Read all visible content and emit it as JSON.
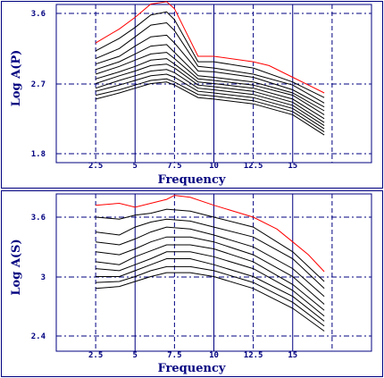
{
  "chart_data": [
    {
      "type": "line",
      "xlabel": "Frequency",
      "ylabel": "Log A(P)",
      "x_ticks": [
        "2.5",
        "5",
        "7.5",
        "10",
        "12.5",
        "15"
      ],
      "y_ticks": [
        "3.6",
        "2.7",
        "1.8"
      ],
      "xlim": [
        0,
        20
      ],
      "ylim": [
        1.8,
        3.6
      ],
      "grid": true,
      "series": [
        {
          "color": "#ff0000",
          "x": [
            2.5,
            4,
            5,
            6,
            7,
            7.5,
            9,
            10,
            12.5,
            13.5,
            15,
            16,
            17
          ],
          "y": [
            3.22,
            3.4,
            3.55,
            3.72,
            3.75,
            3.66,
            3.05,
            3.05,
            2.98,
            2.93,
            2.78,
            2.68,
            2.58
          ]
        },
        {
          "color": "#000000",
          "x": [
            2.5,
            4,
            5,
            6,
            7,
            7.5,
            9,
            10,
            12.5,
            15,
            17
          ],
          "y": [
            3.12,
            3.28,
            3.42,
            3.58,
            3.62,
            3.52,
            2.98,
            2.98,
            2.9,
            2.72,
            2.52
          ]
        },
        {
          "color": "#000000",
          "x": [
            2.5,
            4,
            5,
            6,
            7,
            7.5,
            9,
            10,
            12.5,
            15,
            17
          ],
          "y": [
            3.02,
            3.15,
            3.3,
            3.45,
            3.48,
            3.38,
            2.92,
            2.9,
            2.82,
            2.68,
            2.45
          ]
        },
        {
          "color": "#000000",
          "x": [
            2.5,
            4,
            5,
            6,
            7,
            7.5,
            9,
            10,
            12.5,
            15,
            17
          ],
          "y": [
            2.95,
            3.05,
            3.18,
            3.3,
            3.32,
            3.22,
            2.86,
            2.85,
            2.78,
            2.62,
            2.4
          ]
        },
        {
          "color": "#000000",
          "x": [
            2.5,
            4,
            5,
            6,
            7,
            7.5,
            9,
            10,
            12.5,
            15,
            17
          ],
          "y": [
            2.88,
            2.98,
            3.08,
            3.18,
            3.2,
            3.1,
            2.8,
            2.78,
            2.72,
            2.58,
            2.35
          ]
        },
        {
          "color": "#000000",
          "x": [
            2.5,
            4,
            5,
            6,
            7,
            7.5,
            9,
            10,
            12.5,
            15,
            17
          ],
          "y": [
            2.82,
            2.92,
            3.0,
            3.08,
            3.1,
            3.02,
            2.76,
            2.74,
            2.68,
            2.55,
            2.3
          ]
        },
        {
          "color": "#000000",
          "x": [
            2.5,
            4,
            5,
            6,
            7,
            7.5,
            9,
            10,
            12.5,
            15,
            17
          ],
          "y": [
            2.76,
            2.85,
            2.92,
            3.0,
            3.02,
            2.95,
            2.72,
            2.7,
            2.64,
            2.5,
            2.25
          ]
        },
        {
          "color": "#000000",
          "x": [
            2.5,
            4,
            5,
            6,
            7,
            7.5,
            9,
            10,
            12.5,
            15,
            17
          ],
          "y": [
            2.7,
            2.8,
            2.86,
            2.93,
            2.95,
            2.9,
            2.68,
            2.66,
            2.6,
            2.46,
            2.2
          ]
        },
        {
          "color": "#000000",
          "x": [
            2.5,
            4,
            5,
            6,
            7,
            7.5,
            9,
            10,
            12.5,
            15,
            17
          ],
          "y": [
            2.64,
            2.74,
            2.8,
            2.86,
            2.88,
            2.84,
            2.64,
            2.62,
            2.56,
            2.42,
            2.16
          ]
        },
        {
          "color": "#000000",
          "x": [
            2.5,
            4,
            5,
            6,
            7,
            7.5,
            9,
            10,
            12.5,
            15,
            17
          ],
          "y": [
            2.6,
            2.68,
            2.74,
            2.8,
            2.82,
            2.78,
            2.6,
            2.58,
            2.52,
            2.38,
            2.12
          ]
        },
        {
          "color": "#000000",
          "x": [
            2.5,
            4,
            5,
            6,
            7,
            7.5,
            9,
            10,
            12.5,
            15,
            17
          ],
          "y": [
            2.55,
            2.62,
            2.68,
            2.74,
            2.76,
            2.72,
            2.56,
            2.54,
            2.48,
            2.34,
            2.08
          ]
        },
        {
          "color": "#000000",
          "x": [
            2.5,
            4,
            5,
            6,
            7,
            7.5,
            9,
            10,
            12.5,
            15,
            17
          ],
          "y": [
            2.5,
            2.58,
            2.64,
            2.7,
            2.72,
            2.68,
            2.52,
            2.5,
            2.44,
            2.3,
            2.04
          ]
        }
      ]
    },
    {
      "type": "line",
      "xlabel": "Frequency",
      "ylabel": "Log A(S)",
      "x_ticks": [
        "2.5",
        "5",
        "7.5",
        "10",
        "12.5",
        "15"
      ],
      "y_ticks": [
        "3.6",
        "3",
        "2.4"
      ],
      "xlim": [
        0,
        20
      ],
      "ylim": [
        2.4,
        3.6
      ],
      "grid": true,
      "series": [
        {
          "color": "#ff0000",
          "x": [
            2.5,
            4,
            5,
            6,
            7,
            7.5,
            8.5,
            10,
            12.5,
            14,
            15,
            16,
            17
          ],
          "y": [
            3.72,
            3.74,
            3.7,
            3.74,
            3.78,
            3.82,
            3.8,
            3.72,
            3.6,
            3.48,
            3.35,
            3.22,
            3.05
          ]
        },
        {
          "color": "#000000",
          "x": [
            2.5,
            4,
            5,
            6,
            7,
            8.5,
            10,
            12.5,
            15,
            17
          ],
          "y": [
            3.6,
            3.58,
            3.62,
            3.64,
            3.68,
            3.66,
            3.6,
            3.5,
            3.25,
            2.95
          ]
        },
        {
          "color": "#000000",
          "x": [
            2.5,
            4,
            5,
            6,
            7,
            8.5,
            10,
            12.5,
            15,
            17
          ],
          "y": [
            3.45,
            3.42,
            3.5,
            3.55,
            3.58,
            3.56,
            3.5,
            3.4,
            3.18,
            2.88
          ]
        },
        {
          "color": "#000000",
          "x": [
            2.5,
            4,
            5,
            6,
            7,
            8.5,
            10,
            12.5,
            15,
            17
          ],
          "y": [
            3.35,
            3.32,
            3.38,
            3.45,
            3.5,
            3.48,
            3.42,
            3.3,
            3.08,
            2.8
          ]
        },
        {
          "color": "#000000",
          "x": [
            2.5,
            4,
            5,
            6,
            7,
            8.5,
            10,
            12.5,
            15,
            17
          ],
          "y": [
            3.25,
            3.22,
            3.28,
            3.35,
            3.4,
            3.4,
            3.35,
            3.22,
            3.0,
            2.72
          ]
        },
        {
          "color": "#000000",
          "x": [
            2.5,
            4,
            5,
            6,
            7,
            8.5,
            10,
            12.5,
            15,
            17
          ],
          "y": [
            3.15,
            3.12,
            3.2,
            3.26,
            3.32,
            3.32,
            3.28,
            3.15,
            2.92,
            2.66
          ]
        },
        {
          "color": "#000000",
          "x": [
            2.5,
            4,
            5,
            6,
            7,
            8.5,
            10,
            12.5,
            15,
            17
          ],
          "y": [
            3.08,
            3.06,
            3.12,
            3.18,
            3.25,
            3.25,
            3.2,
            3.08,
            2.86,
            2.6
          ]
        },
        {
          "color": "#000000",
          "x": [
            2.5,
            4,
            5,
            6,
            7,
            8.5,
            10,
            12.5,
            15,
            17
          ],
          "y": [
            3.0,
            3.0,
            3.06,
            3.12,
            3.18,
            3.18,
            3.12,
            3.0,
            2.8,
            2.55
          ]
        },
        {
          "color": "#000000",
          "x": [
            2.5,
            4,
            5,
            6,
            7,
            8.5,
            10,
            12.5,
            15,
            17
          ],
          "y": [
            2.94,
            2.95,
            3.0,
            3.06,
            3.1,
            3.1,
            3.06,
            2.94,
            2.74,
            2.5
          ]
        },
        {
          "color": "#000000",
          "x": [
            2.5,
            4,
            5,
            6,
            7,
            8.5,
            10,
            12.5,
            15,
            17
          ],
          "y": [
            2.88,
            2.9,
            2.95,
            3.0,
            3.04,
            3.04,
            3.0,
            2.88,
            2.68,
            2.45
          ]
        }
      ]
    }
  ]
}
